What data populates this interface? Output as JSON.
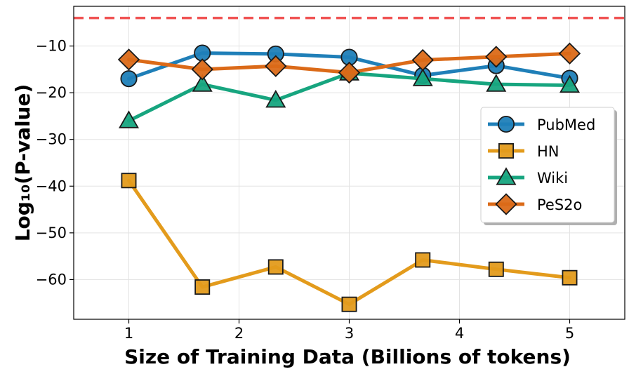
{
  "chart_data": {
    "type": "line",
    "xlabel": "Size of Training Data (Billions of tokens)",
    "ylabel": "Log₁₀(P-value)",
    "xlim": [
      0.5,
      5.5
    ],
    "ylim": [
      -68.5,
      -1.5
    ],
    "x_ticks": [
      1,
      2,
      3,
      4,
      5
    ],
    "y_ticks": [
      -60,
      -50,
      -40,
      -30,
      -20,
      -10
    ],
    "x_tick_labels": [
      "1",
      "2",
      "3",
      "4",
      "5"
    ],
    "y_tick_labels": [
      "−60",
      "−50",
      "−40",
      "−30",
      "−20",
      "−10"
    ],
    "grid": true,
    "legend_position": "center-right",
    "threshold_line": {
      "y": -4.0,
      "color": "#f05454",
      "style": "dashed"
    },
    "x": [
      1.0,
      1.667,
      2.333,
      3.0,
      3.667,
      4.333,
      5.0
    ],
    "series": [
      {
        "name": "PubMed",
        "marker": "circle",
        "color": "#1f7fb8",
        "values": [
          -17.0,
          -11.5,
          -11.7,
          -12.4,
          -16.3,
          -14.2,
          -16.9
        ]
      },
      {
        "name": "HN",
        "marker": "square",
        "color": "#e39b1c",
        "values": [
          -38.8,
          -61.6,
          -57.3,
          -65.3,
          -55.8,
          -57.8,
          -59.6
        ]
      },
      {
        "name": "Wiki",
        "marker": "triangle",
        "color": "#17a57f",
        "values": [
          -26.0,
          -18.2,
          -21.6,
          -15.8,
          -17.0,
          -18.2,
          -18.4
        ]
      },
      {
        "name": "PeS2o",
        "marker": "diamond",
        "color": "#db6a18",
        "values": [
          -12.9,
          -15.0,
          -14.3,
          -15.7,
          -13.0,
          -12.3,
          -11.6
        ]
      }
    ]
  }
}
